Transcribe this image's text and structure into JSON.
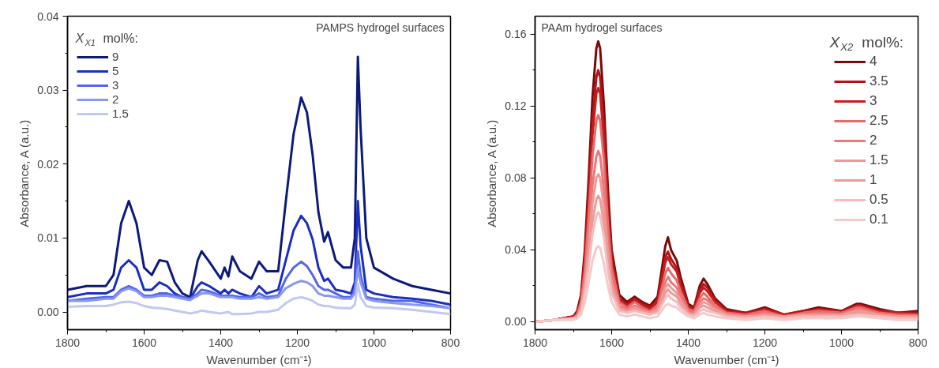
{
  "chart_data": [
    {
      "type": "line",
      "title": "PAMPS hydrogel surfaces",
      "xlabel": "Wavenumber (cm⁻¹)",
      "ylabel": "Absorbance, A (a.u.)",
      "legend_title": "X$_{X1}$ mol%:",
      "legend": "top left",
      "grid": false,
      "line_style": "solid",
      "xlim": [
        1800,
        800
      ],
      "ylim": [
        -0.0024,
        0.04
      ],
      "xticks": [
        1800,
        {
          "value": 1700,
          "label": null
        },
        1600,
        {
          "value": 1500,
          "label": null
        },
        1400,
        {
          "value": 1300,
          "label": null
        },
        1200,
        {
          "value": 1100,
          "label": null
        },
        1000,
        {
          "value": 900,
          "label": null
        },
        800
      ],
      "yticks": [
        {
          "value": 0,
          "label": "0.00"
        },
        {
          "value": 0.005,
          "label": null
        },
        0.01,
        {
          "value": 0.015,
          "label": null
        },
        0.02,
        {
          "value": 0.025,
          "label": null
        },
        0.03,
        {
          "value": 0.035,
          "label": null
        },
        0.04
      ],
      "x": [
        1800,
        1750,
        1700,
        1680,
        1660,
        1640,
        1620,
        1600,
        1580,
        1560,
        1540,
        1520,
        1500,
        1480,
        1460,
        1450,
        1430,
        1400,
        1390,
        1380,
        1370,
        1350,
        1320,
        1300,
        1280,
        1250,
        1230,
        1210,
        1190,
        1175,
        1160,
        1145,
        1130,
        1120,
        1100,
        1080,
        1060,
        1050,
        1042,
        1035,
        1020,
        1000,
        950,
        900,
        850,
        800
      ],
      "series": [
        {
          "name": "9",
          "color": "#0d1a7a",
          "values": [
            0.003,
            0.0035,
            0.0035,
            0.005,
            0.012,
            0.015,
            0.012,
            0.006,
            0.005,
            0.007,
            0.0068,
            0.004,
            0.0025,
            0.002,
            0.007,
            0.0082,
            0.0068,
            0.0045,
            0.006,
            0.0048,
            0.0075,
            0.0055,
            0.0045,
            0.0068,
            0.0055,
            0.0055,
            0.015,
            0.024,
            0.029,
            0.027,
            0.0212,
            0.0135,
            0.0095,
            0.0108,
            0.007,
            0.006,
            0.006,
            0.01,
            0.0345,
            0.025,
            0.01,
            0.006,
            0.0045,
            0.0035,
            0.003,
            0.0025
          ]
        },
        {
          "name": "5",
          "color": "#1a2fc0",
          "values": [
            0.002,
            0.0025,
            0.0025,
            0.003,
            0.006,
            0.007,
            0.006,
            0.003,
            0.003,
            0.004,
            0.0035,
            0.0025,
            0.002,
            0.0018,
            0.0035,
            0.004,
            0.0035,
            0.0025,
            0.003,
            0.0025,
            0.003,
            0.0025,
            0.002,
            0.0035,
            0.0025,
            0.003,
            0.007,
            0.011,
            0.013,
            0.012,
            0.0098,
            0.006,
            0.0042,
            0.0045,
            0.003,
            0.0028,
            0.0025,
            0.004,
            0.015,
            0.009,
            0.003,
            0.0025,
            0.002,
            0.0018,
            0.0015,
            0.001
          ]
        },
        {
          "name": "3",
          "color": "#5566e8",
          "values": [
            0.0015,
            0.0018,
            0.002,
            0.002,
            0.003,
            0.0035,
            0.003,
            0.0022,
            0.0022,
            0.0025,
            0.0025,
            0.0022,
            0.002,
            0.0018,
            0.0025,
            0.003,
            0.0028,
            0.0022,
            0.0022,
            0.0022,
            0.0022,
            0.002,
            0.002,
            0.0025,
            0.002,
            0.0022,
            0.0045,
            0.006,
            0.0068,
            0.0062,
            0.005,
            0.0035,
            0.003,
            0.003,
            0.0025,
            0.002,
            0.002,
            0.003,
            0.0082,
            0.005,
            0.002,
            0.0018,
            0.0015,
            0.0015,
            0.001,
            0.0005
          ]
        },
        {
          "name": "2",
          "color": "#8898f0",
          "values": [
            0.0015,
            0.0015,
            0.0018,
            0.0018,
            0.0028,
            0.0032,
            0.0028,
            0.002,
            0.002,
            0.0022,
            0.0022,
            0.002,
            0.0018,
            0.0016,
            0.0022,
            0.0025,
            0.0025,
            0.002,
            0.002,
            0.002,
            0.002,
            0.0018,
            0.0018,
            0.002,
            0.0018,
            0.002,
            0.0032,
            0.0038,
            0.0042,
            0.004,
            0.0035,
            0.0025,
            0.0022,
            0.0022,
            0.002,
            0.0018,
            0.0018,
            0.0025,
            0.0058,
            0.004,
            0.0018,
            0.0015,
            0.0012,
            0.001,
            0.0008,
            0.0005
          ]
        },
        {
          "name": "1.5",
          "color": "#c0c8f4",
          "values": [
            0.0007,
            0.0008,
            0.0008,
            0.001,
            0.0013,
            0.0014,
            0.0012,
            0.0008,
            0.0006,
            0.0005,
            0.0004,
            0.0002,
            0,
            -0.0002,
            0,
            0.0002,
            0,
            -0.0002,
            -0.0001,
            0,
            -0.0003,
            -0.0003,
            -0.0002,
            0,
            0,
            0.0003,
            0.0012,
            0.0018,
            0.002,
            0.0018,
            0.0015,
            0.001,
            0.0008,
            0.0008,
            0.0006,
            0.0005,
            0.0005,
            0.001,
            0.0038,
            0.002,
            0.0008,
            0.0006,
            0.0005,
            0.0003,
            0,
            -0.0003
          ]
        }
      ]
    },
    {
      "type": "line",
      "title": "PAAm hydrogel surfaces",
      "xlabel": "Wavenumber (cm⁻¹)",
      "ylabel": "Absorbance, A (a.u.)",
      "legend_title": "X$_{X2}$ mol%:",
      "legend": "top right",
      "grid": false,
      "line_style": "solid",
      "xlim": [
        1800,
        800
      ],
      "ylim": [
        -0.0044,
        0.17
      ],
      "xticks": [
        1800,
        {
          "value": 1700,
          "label": null
        },
        1600,
        {
          "value": 1500,
          "label": null
        },
        1400,
        {
          "value": 1300,
          "label": null
        },
        1200,
        {
          "value": 1100,
          "label": null
        },
        1000,
        {
          "value": 900,
          "label": null
        },
        800
      ],
      "yticks": [
        {
          "value": 0,
          "label": "0.00"
        },
        {
          "value": 0.02,
          "label": null
        },
        0.04,
        {
          "value": 0.06,
          "label": null
        },
        0.08,
        {
          "value": 0.1,
          "label": null
        },
        0.12,
        {
          "value": 0.14,
          "label": null
        },
        0.16
      ],
      "x": [
        1800,
        1750,
        1700,
        1690,
        1680,
        1670,
        1660,
        1650,
        1640,
        1635,
        1630,
        1620,
        1610,
        1600,
        1580,
        1560,
        1540,
        1520,
        1500,
        1480,
        1470,
        1460,
        1453,
        1445,
        1430,
        1420,
        1400,
        1385,
        1370,
        1360,
        1350,
        1330,
        1300,
        1250,
        1200,
        1150,
        1100,
        1060,
        1000,
        960,
        950,
        900,
        850,
        800
      ],
      "series": [
        {
          "name": "4",
          "color": "#7a0a0a",
          "values": [
            0,
            0.001,
            0.003,
            0.006,
            0.015,
            0.04,
            0.08,
            0.125,
            0.152,
            0.156,
            0.152,
            0.12,
            0.075,
            0.04,
            0.015,
            0.011,
            0.014,
            0.011,
            0.009,
            0.014,
            0.028,
            0.042,
            0.047,
            0.04,
            0.034,
            0.025,
            0.01,
            0.008,
            0.02,
            0.024,
            0.021,
            0.013,
            0.007,
            0.005,
            0.008,
            0.004,
            0.006,
            0.008,
            0.006,
            0.01,
            0.01,
            0.007,
            0.005,
            0.006
          ]
        },
        {
          "name": "3.5",
          "color": "#b01515",
          "values": [
            0,
            0.001,
            0.003,
            0.005,
            0.013,
            0.036,
            0.072,
            0.112,
            0.136,
            0.14,
            0.136,
            0.108,
            0.067,
            0.036,
            0.013,
            0.01,
            0.013,
            0.01,
            0.008,
            0.012,
            0.024,
            0.036,
            0.039,
            0.035,
            0.03,
            0.022,
            0.009,
            0.007,
            0.018,
            0.021,
            0.019,
            0.012,
            0.006,
            0.005,
            0.007,
            0.004,
            0.006,
            0.007,
            0.006,
            0.009,
            0.009,
            0.006,
            0.005,
            0.005
          ]
        },
        {
          "name": "3",
          "color": "#c41e1e",
          "values": [
            0,
            0.001,
            0.003,
            0.005,
            0.012,
            0.033,
            0.067,
            0.104,
            0.127,
            0.13,
            0.127,
            0.1,
            0.062,
            0.033,
            0.012,
            0.009,
            0.012,
            0.009,
            0.007,
            0.011,
            0.022,
            0.033,
            0.036,
            0.032,
            0.028,
            0.02,
            0.008,
            0.007,
            0.016,
            0.019,
            0.017,
            0.011,
            0.006,
            0.004,
            0.007,
            0.004,
            0.005,
            0.007,
            0.005,
            0.009,
            0.009,
            0.006,
            0.005,
            0.004
          ]
        },
        {
          "name": "2.5",
          "color": "#e86a6a",
          "values": [
            0,
            0.001,
            0.002,
            0.004,
            0.011,
            0.029,
            0.059,
            0.092,
            0.112,
            0.115,
            0.112,
            0.089,
            0.055,
            0.03,
            0.011,
            0.008,
            0.011,
            0.008,
            0.006,
            0.009,
            0.018,
            0.027,
            0.03,
            0.027,
            0.023,
            0.017,
            0.007,
            0.006,
            0.013,
            0.016,
            0.014,
            0.009,
            0.005,
            0.004,
            0.006,
            0.003,
            0.005,
            0.006,
            0.005,
            0.008,
            0.008,
            0.005,
            0.004,
            0.004
          ]
        },
        {
          "name": "2",
          "color": "#ec7878",
          "values": [
            0,
            0.001,
            0.002,
            0.003,
            0.009,
            0.024,
            0.049,
            0.076,
            0.092,
            0.095,
            0.092,
            0.073,
            0.045,
            0.025,
            0.009,
            0.007,
            0.009,
            0.007,
            0.005,
            0.008,
            0.015,
            0.022,
            0.025,
            0.022,
            0.019,
            0.014,
            0.006,
            0.005,
            0.011,
            0.013,
            0.012,
            0.008,
            0.004,
            0.003,
            0.005,
            0.003,
            0.004,
            0.005,
            0.004,
            0.007,
            0.007,
            0.004,
            0.003,
            0.003
          ]
        },
        {
          "name": "1.5",
          "color": "#f09898",
          "values": [
            0,
            0.001,
            0.002,
            0.003,
            0.008,
            0.021,
            0.042,
            0.066,
            0.08,
            0.082,
            0.08,
            0.063,
            0.039,
            0.021,
            0.008,
            0.006,
            0.008,
            0.006,
            0.005,
            0.007,
            0.013,
            0.019,
            0.021,
            0.019,
            0.016,
            0.012,
            0.005,
            0.004,
            0.009,
            0.011,
            0.01,
            0.007,
            0.004,
            0.003,
            0.004,
            0.003,
            0.004,
            0.004,
            0.004,
            0.006,
            0.006,
            0.004,
            0.003,
            0.003
          ]
        },
        {
          "name": "1",
          "color": "#ec9a9a",
          "values": [
            0,
            0.001,
            0.002,
            0.003,
            0.007,
            0.018,
            0.036,
            0.056,
            0.068,
            0.07,
            0.068,
            0.054,
            0.033,
            0.018,
            0.007,
            0.005,
            0.007,
            0.005,
            0.004,
            0.006,
            0.011,
            0.016,
            0.018,
            0.016,
            0.014,
            0.01,
            0.004,
            0.004,
            0.008,
            0.009,
            0.008,
            0.006,
            0.003,
            0.002,
            0.004,
            0.002,
            0.003,
            0.004,
            0.003,
            0.005,
            0.005,
            0.003,
            0.003,
            0.002
          ]
        },
        {
          "name": "0.5",
          "color": "#f4bcbc",
          "values": [
            0,
            0.001,
            0.002,
            0.002,
            0.006,
            0.016,
            0.031,
            0.049,
            0.059,
            0.061,
            0.059,
            0.047,
            0.029,
            0.016,
            0.006,
            0.005,
            0.006,
            0.005,
            0.004,
            0.005,
            0.009,
            0.013,
            0.015,
            0.013,
            0.011,
            0.008,
            0.004,
            0.003,
            0.006,
            0.007,
            0.006,
            0.005,
            0.003,
            0.002,
            0.003,
            0.002,
            0.003,
            0.003,
            0.003,
            0.004,
            0.004,
            0.003,
            0.002,
            0.002
          ]
        },
        {
          "name": "0.1",
          "color": "#f4caca",
          "values": [
            0,
            0.001,
            0.001,
            0.002,
            0.004,
            0.011,
            0.022,
            0.034,
            0.041,
            0.042,
            0.041,
            0.032,
            0.02,
            0.011,
            0.004,
            0.003,
            0.004,
            0.003,
            0.002,
            0.003,
            0.006,
            0.009,
            0.01,
            0.009,
            0.008,
            0.006,
            0.003,
            0.002,
            0.004,
            0.005,
            0.004,
            0.003,
            0.002,
            0.001,
            0.002,
            0.001,
            0.002,
            0.002,
            0.002,
            0.003,
            0.003,
            0.002,
            0.001,
            0.001
          ]
        }
      ]
    }
  ]
}
